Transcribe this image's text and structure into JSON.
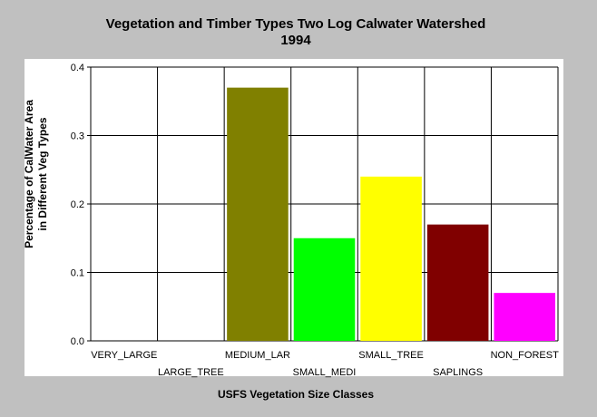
{
  "chart_data": {
    "type": "bar",
    "title": "Vegetation and Timber Types Two Log Calwater Watershed",
    "subtitle": "1994",
    "xlabel": "USFS Vegetation Size Classes",
    "ylabel_line1": "Percentage of CalWater Area",
    "ylabel_line2": "in Different Veg Types",
    "ylim": [
      0,
      0.4
    ],
    "yticks": [
      "0.0",
      "0.1",
      "0.2",
      "0.3",
      "0.4"
    ],
    "grid": true,
    "categories": [
      "VERY_LARGE",
      "LARGE_TREE",
      "MEDIUM_LAR",
      "SMALL_MEDI",
      "SMALL_TREE",
      "SAPLINGS",
      "NON_FOREST"
    ],
    "values": [
      0,
      0,
      0.37,
      0.15,
      0.24,
      0.17,
      0.07
    ],
    "colors": [
      "#808000",
      "#808000",
      "#808000",
      "#00ff00",
      "#ffff00",
      "#800000",
      "#ff00ff"
    ]
  }
}
